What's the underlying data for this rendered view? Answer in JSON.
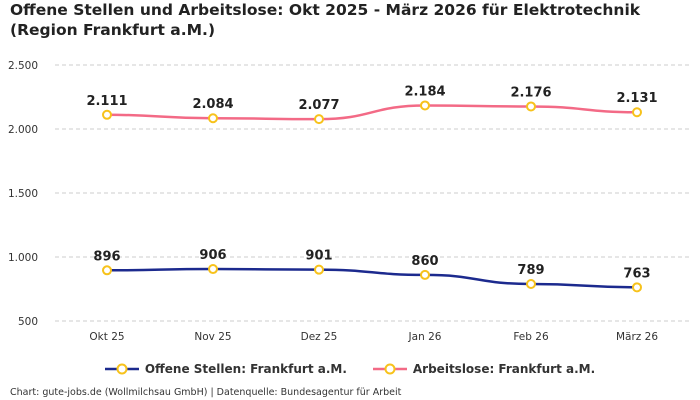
{
  "chart_data": {
    "type": "line",
    "title": "Offene Stellen und Arbeitslose: Okt 2025 - März 2026 für Elektrotechnik (Region Frankfurt a.M.)",
    "categories": [
      "Okt 25",
      "Nov 25",
      "Dez 25",
      "Jan 26",
      "Feb 26",
      "März 26"
    ],
    "series": [
      {
        "name": "Offene Stellen: Frankfurt a.M.",
        "values": [
          896,
          906,
          901,
          860,
          789,
          763
        ],
        "labels": [
          "896",
          "906",
          "901",
          "860",
          "789",
          "763"
        ],
        "color": "#1c2a8e"
      },
      {
        "name": "Arbeitslose: Frankfurt a.M.",
        "values": [
          2111,
          2084,
          2077,
          2184,
          2176,
          2131
        ],
        "labels": [
          "2.111",
          "2.084",
          "2.077",
          "2.184",
          "2.176",
          "2.131"
        ],
        "color": "#f36a86"
      }
    ],
    "marker_color": "#f7c21b",
    "ylim": [
      500,
      2500
    ],
    "yticks": [
      500,
      1000,
      1500,
      2000,
      2500
    ],
    "ytick_labels": [
      "500",
      "1.000",
      "1.500",
      "2.000",
      "2.500"
    ],
    "grid": true,
    "legend": "bottom",
    "xlabel": "",
    "ylabel": ""
  },
  "footer": "Chart: gute-jobs.de (Wollmilchsau GmbH) | Datenquelle: Bundesagentur für Arbeit"
}
